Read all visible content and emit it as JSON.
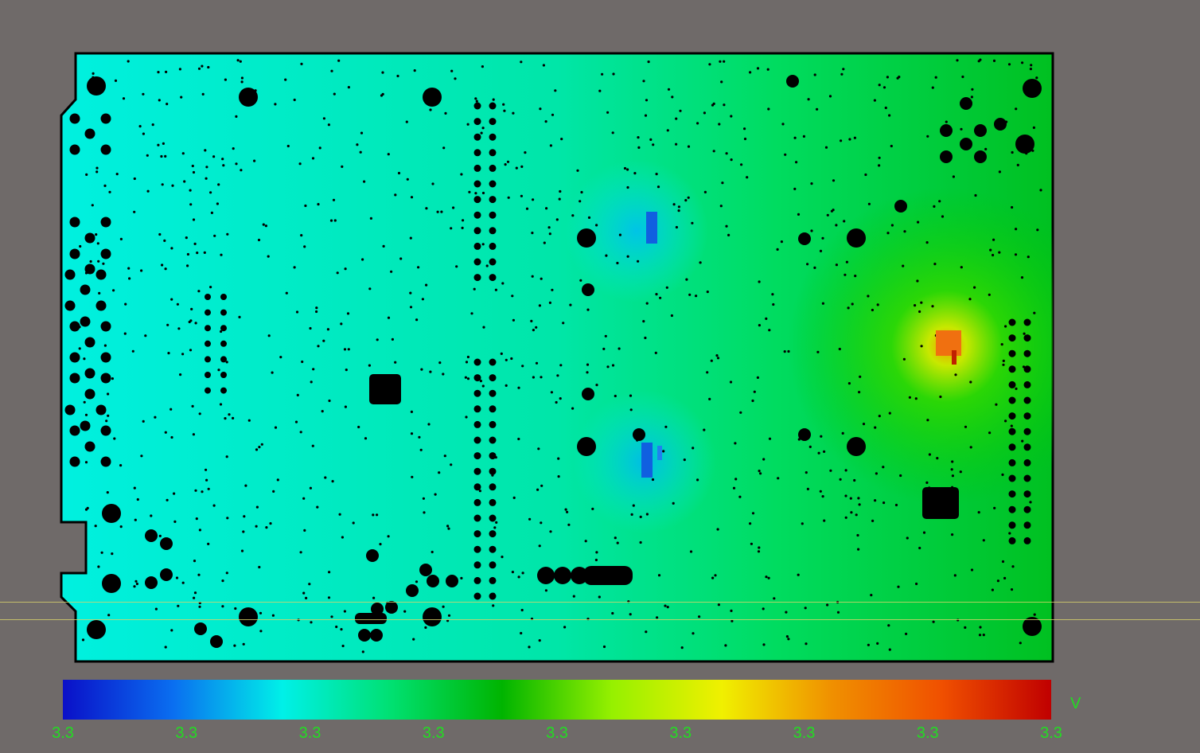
{
  "view": {
    "title": "",
    "unit": "V",
    "colorbar_stops": [
      "#0a10c8",
      "#0a6ef0",
      "#00f0e8",
      "#00e070",
      "#00b400",
      "#96f000",
      "#f0f000",
      "#f09000",
      "#f05000",
      "#c00000"
    ],
    "tick_labels": [
      "3.3",
      "3.3",
      "3.3",
      "3.3",
      "3.3",
      "3.3",
      "3.3",
      "3.3",
      "3.3"
    ],
    "background_color": "#6f6a69",
    "outline_color": "#000000",
    "label_color": "#22dd22"
  }
}
